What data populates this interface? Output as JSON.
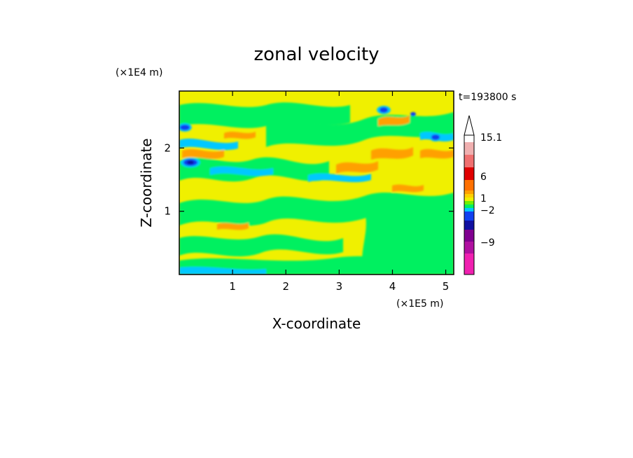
{
  "chart_data": {
    "type": "heatmap",
    "title": "zonal velocity",
    "xlabel": "X-coordinate",
    "ylabel": "Z-coordinate",
    "x_scale_label": "(×1E5 m)",
    "y_scale_label": "(×1E4 m)",
    "time_label": "t=193800 s",
    "xlim": [
      0,
      5.15
    ],
    "ylim": [
      0,
      2.9
    ],
    "x_ticks": [
      1,
      2,
      3,
      4,
      5
    ],
    "y_ticks": [
      1,
      2
    ],
    "x_tick_labels": [
      "1",
      "2",
      "3",
      "4",
      "5"
    ],
    "y_tick_labels": [
      "1",
      "2"
    ],
    "colorbar": {
      "levels_colors": [
        "#f020b0",
        "#b010a0",
        "#800090",
        "#1010a0",
        "#1040f0",
        "#00c8ff",
        "#00f060",
        "#70f000",
        "#f0f000",
        "#ffd000",
        "#ffa000",
        "#ff7000",
        "#e00000",
        "#f07070",
        "#f0b0b0"
      ],
      "labels": [
        "15.1",
        "6",
        "1",
        "−2",
        "−9"
      ],
      "label_positions": [
        196,
        252,
        283,
        300,
        346
      ],
      "extend_color": "#ffffff"
    },
    "field_regions": [
      {
        "value": "positive_core",
        "color": "#ffa000"
      },
      {
        "value": "negative_core",
        "color": "#1040f0"
      }
    ]
  }
}
